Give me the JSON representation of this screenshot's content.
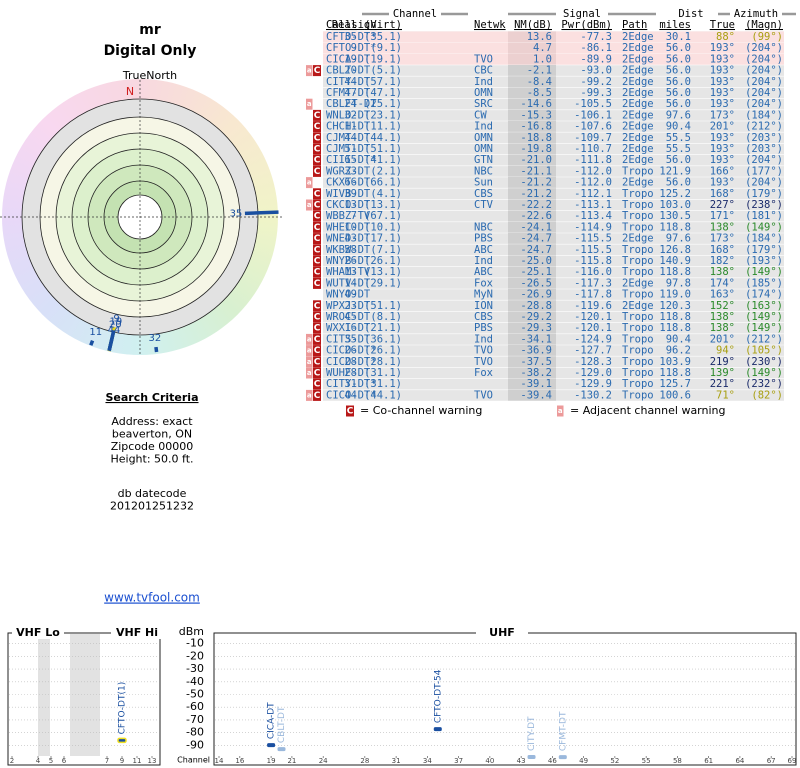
{
  "header": {
    "title": "mr",
    "subtitle": "Digital Only"
  },
  "polar": {
    "north_label": "TrueNorth",
    "north": "N",
    "markers": [
      {
        "label": "35",
        "azimuth": 88,
        "nm": 13.6,
        "color": "#1a4fa0"
      },
      {
        "label": "9",
        "azimuth": 193,
        "nm": 4.7,
        "color": "#e8d820"
      },
      {
        "label": "19",
        "azimuth": 193,
        "nm": 1.0,
        "color": "#1a4fa0"
      },
      {
        "label": "20",
        "azimuth": 193,
        "nm": -2.1,
        "color": "#1a4fa0"
      },
      {
        "label": "11",
        "azimuth": 201,
        "nm": -16.8,
        "color": "#1a4fa0"
      },
      {
        "label": "44",
        "azimuth": 193,
        "nm": -8.4,
        "color": "#1a4fa0"
      },
      {
        "label": "32",
        "azimuth": 173,
        "nm": -15.3,
        "color": "#1a4fa0"
      }
    ]
  },
  "search": {
    "heading": "Search Criteria",
    "lines": [
      "Address: exact",
      "beaverton, ON",
      "Zipcode 00000",
      "Height: 50.0 ft."
    ],
    "db": [
      "db datecode",
      "201201251232"
    ],
    "link": "www.tvfool.com"
  },
  "table": {
    "groups": [
      "Channel",
      "Signal",
      "Dist",
      "Azimuth"
    ],
    "columns": [
      "Callsign",
      "Real",
      "(Virt)",
      "Netwk",
      "NM(dB)",
      "Pwr(dBm)",
      "Path",
      "miles",
      "True",
      "(Magn)"
    ],
    "rows": [
      {
        "warn": [],
        "cells": [
          "CFTO-DT*",
          "35",
          "(35.1)",
          null,
          "13.6",
          "-77.3",
          "2Edge",
          "30.1",
          "88°",
          "(99°)"
        ],
        "az_color": "#a89f10"
      },
      {
        "warn": [],
        "cells": [
          "CFTO-DT*",
          "9",
          "(9.1)",
          null,
          "4.7",
          "-86.1",
          "2Edge",
          "56.0",
          "193°",
          "(204°)"
        ],
        "az_color": "#2a6ab0"
      },
      {
        "warn": [],
        "cells": [
          "CICA-DT",
          "19",
          "(19.1)",
          "TVO",
          "1.0",
          "-89.9",
          "2Edge",
          "56.0",
          "193°",
          "(204°)"
        ],
        "az_color": "#2a6ab0"
      },
      {
        "warn": [
          "a",
          "C"
        ],
        "cells": [
          "CBLT-DT",
          "20",
          "(5.1)",
          "CBC",
          "-2.1",
          "-93.0",
          "2Edge",
          "56.0",
          "193°",
          "(204°)"
        ],
        "az_color": "#2a6ab0"
      },
      {
        "warn": [],
        "cells": [
          "CITY-DT",
          "44",
          "(57.1)",
          "Ind",
          "-8.4",
          "-99.2",
          "2Edge",
          "56.0",
          "193°",
          "(204°)"
        ],
        "az_color": "#2a6ab0"
      },
      {
        "warn": [],
        "cells": [
          "CFMT-DT",
          "47",
          "(47.1)",
          "OMN",
          "-8.5",
          "-99.3",
          "2Edge",
          "56.0",
          "193°",
          "(204°)"
        ],
        "az_color": "#2a6ab0"
      },
      {
        "warn": [
          "a"
        ],
        "cells": [
          "CBLFT-DT",
          "24",
          "(25.1)",
          "SRC",
          "-14.6",
          "-105.5",
          "2Edge",
          "56.0",
          "193°",
          "(204°)"
        ],
        "az_color": "#2a6ab0"
      },
      {
        "warn": [
          "C"
        ],
        "cells": [
          "WNLO-DT",
          "32",
          "(23.1)",
          "CW",
          "-15.3",
          "-106.1",
          "2Edge",
          "97.6",
          "173°",
          "(184°)"
        ],
        "az_color": "#2a6ab0"
      },
      {
        "warn": [
          "C"
        ],
        "cells": [
          "CHCH-DT",
          "11",
          "(11.1)",
          "Ind",
          "-16.8",
          "-107.6",
          "2Edge",
          "90.4",
          "201°",
          "(212°)"
        ],
        "az_color": "#2a6ab0"
      },
      {
        "warn": [
          "C"
        ],
        "cells": [
          "CJMT-DT",
          "44",
          "(44.1)",
          "OMN",
          "-18.8",
          "-109.7",
          "2Edge",
          "55.5",
          "193°",
          "(203°)"
        ],
        "az_color": "#2a6ab0"
      },
      {
        "warn": [
          "C"
        ],
        "cells": [
          "CJMT-DT",
          "51",
          "(51.1)",
          "OMN",
          "-19.8",
          "-110.7",
          "2Edge",
          "55.5",
          "193°",
          "(203°)"
        ],
        "az_color": "#2a6ab0"
      },
      {
        "warn": [
          "C"
        ],
        "cells": [
          "CIII-DT*",
          "65",
          "(41.1)",
          "GTN",
          "-21.0",
          "-111.8",
          "2Edge",
          "56.0",
          "193°",
          "(204°)"
        ],
        "az_color": "#2a6ab0"
      },
      {
        "warn": [
          "C"
        ],
        "cells": [
          "WGRZ-DT",
          "33",
          "(2.1)",
          "NBC",
          "-21.1",
          "-112.0",
          "Tropo",
          "121.9",
          "166°",
          "(177°)"
        ],
        "az_color": "#2a6ab0"
      },
      {
        "warn": [
          "a"
        ],
        "cells": [
          "CKXT-DT",
          "66",
          "(66.1)",
          "Sun",
          "-21.2",
          "-112.0",
          "2Edge",
          "56.0",
          "193°",
          "(204°)"
        ],
        "az_color": "#2a6ab0"
      },
      {
        "warn": [
          "C"
        ],
        "cells": [
          "WIVB-DT",
          "39",
          "(4.1)",
          "CBS",
          "-21.2",
          "-112.1",
          "Tropo",
          "125.2",
          "168°",
          "(179°)"
        ],
        "az_color": "#2a6ab0"
      },
      {
        "warn": [
          "a",
          "C"
        ],
        "cells": [
          "CKCO-DT",
          "13",
          "(13.1)",
          "CTV",
          "-22.2",
          "-113.1",
          "Tropo",
          "103.0",
          "227°",
          "(238°)"
        ],
        "az_color": "#1a2a6a"
      },
      {
        "warn": [
          "C"
        ],
        "cells": [
          "WBBZ-TV",
          "7",
          "(67.1)",
          null,
          "-22.6",
          "-113.4",
          "Tropo",
          "130.5",
          "171°",
          "(181°)"
        ],
        "az_color": "#2a6ab0"
      },
      {
        "warn": [
          "C"
        ],
        "cells": [
          "WHEC-DT",
          "10",
          "(10.1)",
          "NBC",
          "-24.1",
          "-114.9",
          "Tropo",
          "118.8",
          "138°",
          "(149°)"
        ],
        "az_color": "#2a8a2a"
      },
      {
        "warn": [
          "C"
        ],
        "cells": [
          "WNED-DT",
          "43",
          "(17.1)",
          "PBS",
          "-24.7",
          "-115.5",
          "2Edge",
          "97.6",
          "173°",
          "(184°)"
        ],
        "az_color": "#2a6ab0"
      },
      {
        "warn": [
          "C"
        ],
        "cells": [
          "WKBW-DT",
          "38",
          "(7.1)",
          "ABC",
          "-24.7",
          "-115.5",
          "Tropo",
          "126.8",
          "168°",
          "(179°)"
        ],
        "az_color": "#2a6ab0"
      },
      {
        "warn": [
          "C"
        ],
        "cells": [
          "WNYB-DT",
          "26",
          "(26.1)",
          "Ind",
          "-25.0",
          "-115.8",
          "Tropo",
          "140.9",
          "182°",
          "(193°)"
        ],
        "az_color": "#2a6ab0"
      },
      {
        "warn": [
          "C"
        ],
        "cells": [
          "WHAM-TV",
          "13",
          "(13.1)",
          "ABC",
          "-25.1",
          "-116.0",
          "Tropo",
          "118.8",
          "138°",
          "(149°)"
        ],
        "az_color": "#2a8a2a"
      },
      {
        "warn": [
          "C"
        ],
        "cells": [
          "WUTV-DT",
          "14",
          "(29.1)",
          "Fox",
          "-26.5",
          "-117.3",
          "2Edge",
          "97.8",
          "174°",
          "(185°)"
        ],
        "az_color": "#2a6ab0"
      },
      {
        "warn": [],
        "cells": [
          "WNYO-DT",
          "49",
          null,
          "MyN",
          "-26.9",
          "-117.8",
          "Tropo",
          "119.0",
          "163°",
          "(174°)"
        ],
        "az_color": "#2a6ab0"
      },
      {
        "warn": [
          "C"
        ],
        "cells": [
          "WPXJ-DT",
          "23",
          "(51.1)",
          "ION",
          "-28.8",
          "-119.6",
          "2Edge",
          "120.3",
          "152°",
          "(163°)"
        ],
        "az_color": "#2a8a2a"
      },
      {
        "warn": [
          "C"
        ],
        "cells": [
          "WROC-DT",
          "45",
          "(8.1)",
          "CBS",
          "-29.2",
          "-120.1",
          "Tropo",
          "118.8",
          "138°",
          "(149°)"
        ],
        "az_color": "#2a8a2a"
      },
      {
        "warn": [
          "C"
        ],
        "cells": [
          "WXXI-DT",
          "16",
          "(21.1)",
          "PBS",
          "-29.3",
          "-120.1",
          "Tropo",
          "118.8",
          "138°",
          "(149°)"
        ],
        "az_color": "#2a8a2a"
      },
      {
        "warn": [
          "a",
          "C"
        ],
        "cells": [
          "CITS-DT",
          "35",
          "(36.1)",
          "Ind",
          "-34.1",
          "-124.9",
          "Tropo",
          "90.4",
          "201°",
          "(212°)"
        ],
        "az_color": "#2a6ab0"
      },
      {
        "warn": [
          "a",
          "C"
        ],
        "cells": [
          "CICO-DT*",
          "26",
          "(26.1)",
          "TVO",
          "-36.9",
          "-127.7",
          "Tropo",
          "96.2",
          "94°",
          "(105°)"
        ],
        "az_color": "#a89f10"
      },
      {
        "warn": [
          "a",
          "C"
        ],
        "cells": [
          "CICO-DT*",
          "28",
          "(28.1)",
          "TVO",
          "-37.5",
          "-128.3",
          "Tropo",
          "103.9",
          "219°",
          "(230°)"
        ],
        "az_color": "#1a2a6a"
      },
      {
        "warn": [
          "a",
          "C"
        ],
        "cells": [
          "WUHF-DT",
          "28",
          "(31.1)",
          "Fox",
          "-38.2",
          "-129.0",
          "Tropo",
          "118.8",
          "139°",
          "(149°)"
        ],
        "az_color": "#2a8a2a"
      },
      {
        "warn": [
          "C"
        ],
        "cells": [
          "CITY-DT*",
          "31",
          "(31.1)",
          null,
          "-39.1",
          "-129.9",
          "Tropo",
          "125.7",
          "221°",
          "(232°)"
        ],
        "az_color": "#1a2a6a"
      },
      {
        "warn": [
          "a",
          "C"
        ],
        "cells": [
          "CICO-DT*",
          "44",
          "(44.1)",
          "TVO",
          "-39.4",
          "-130.2",
          "Tropo",
          "100.6",
          "71°",
          "(82°)"
        ],
        "az_color": "#a89f10"
      }
    ],
    "legend": {
      "co_icon": "C",
      "co": "= Co-channel warning",
      "adj_icon": "a",
      "adj": "= Adjacent channel warning"
    }
  },
  "spectrum": {
    "ylabel": "dBm",
    "xlabel": "Channel",
    "ylim": [
      0,
      -100
    ],
    "yticks": [
      -10,
      -20,
      -30,
      -40,
      -50,
      -60,
      -70,
      -80,
      -90
    ],
    "panels": [
      {
        "label": "VHF Lo",
        "xlim": [
          2,
          6
        ],
        "xticks": [
          2,
          4,
          5,
          6
        ]
      },
      {
        "label": "VHF Hi",
        "xlim": [
          7,
          13
        ],
        "xticks": [
          7,
          9,
          11,
          13
        ]
      },
      {
        "label": "UHF",
        "xlim": [
          14,
          69
        ],
        "xticks": [
          14,
          16,
          19,
          21,
          24,
          28,
          31,
          34,
          37,
          40,
          43,
          46,
          49,
          52,
          55,
          58,
          61,
          64,
          67,
          69
        ]
      }
    ],
    "stations": [
      {
        "name": "CFTO-DT(1)",
        "panel": 1,
        "channel": 9,
        "dbm": -86.1,
        "color": "#1a4fa0",
        "outline": "#f0e020"
      },
      {
        "name": "CICA-DT",
        "panel": 2,
        "channel": 19,
        "dbm": -89.9,
        "color": "#1a4fa0"
      },
      {
        "name": "CBLT-DT",
        "panel": 2,
        "channel": 20,
        "dbm": -93.0,
        "color": "#9ab8dc"
      },
      {
        "name": "CFTO-DT-54",
        "panel": 2,
        "channel": 35,
        "dbm": -77.3,
        "color": "#1a4fa0"
      },
      {
        "name": "CITY-DT",
        "panel": 2,
        "channel": 44,
        "dbm": -99.2,
        "color": "#9ab8dc"
      },
      {
        "name": "CFMT-DT",
        "panel": 2,
        "channel": 47,
        "dbm": -99.3,
        "color": "#9ab8dc"
      }
    ]
  }
}
